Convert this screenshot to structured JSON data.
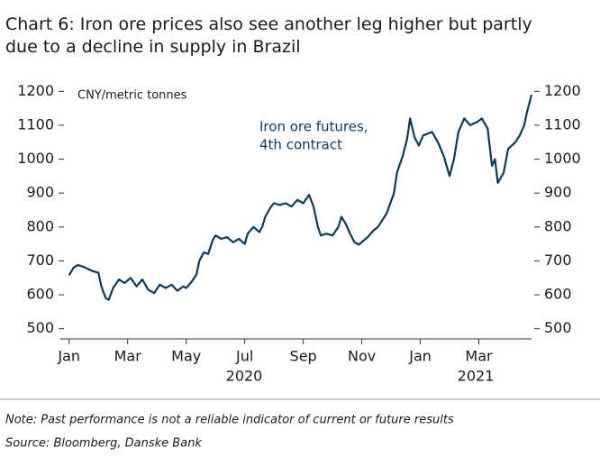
{
  "chart_data": {
    "type": "line",
    "title": "Chart 6: Iron ore prices also see another leg higher but partly due to a decline in supply in Brazil",
    "y_label": "CNY/metric tonnes",
    "annotation": [
      "Iron ore futures,",
      "4th contract"
    ],
    "note": "Note: Past performance is not a reliable indicator of current or future results",
    "source": "Source: Bloomberg, Danske Bank",
    "years": [
      "2020",
      "2021"
    ],
    "xlim": [
      -0.3,
      15.8
    ],
    "xticks": [
      {
        "value": 0,
        "label": "Jan"
      },
      {
        "value": 2,
        "label": "Mar"
      },
      {
        "value": 4,
        "label": "May"
      },
      {
        "value": 6,
        "label": "Jul"
      },
      {
        "value": 8,
        "label": "Sep"
      },
      {
        "value": 10,
        "label": "Nov"
      },
      {
        "value": 12,
        "label": "Jan"
      },
      {
        "value": 14,
        "label": "Mar"
      }
    ],
    "ylim": [
      470,
      1230
    ],
    "yticks": [
      500,
      600,
      700,
      800,
      900,
      1000,
      1100,
      1200
    ],
    "y2lim": [
      470,
      1230
    ],
    "y2ticks": [
      500,
      600,
      700,
      800,
      900,
      1000,
      1100,
      1200
    ],
    "x": [
      0,
      0.15,
      0.3,
      0.5,
      0.8,
      1.0,
      1.1,
      1.25,
      1.35,
      1.5,
      1.7,
      1.9,
      2.1,
      2.3,
      2.5,
      2.7,
      2.9,
      3.1,
      3.3,
      3.5,
      3.7,
      3.9,
      4.0,
      4.2,
      4.35,
      4.45,
      4.6,
      4.75,
      4.9,
      5.0,
      5.2,
      5.4,
      5.6,
      5.8,
      6.0,
      6.1,
      6.3,
      6.5,
      6.6,
      6.7,
      6.9,
      7.0,
      7.2,
      7.4,
      7.6,
      7.8,
      8.0,
      8.2,
      8.35,
      8.5,
      8.6,
      8.8,
      9.0,
      9.2,
      9.3,
      9.45,
      9.6,
      9.75,
      9.9,
      10.2,
      10.4,
      10.55,
      10.85,
      11.1,
      11.2,
      11.4,
      11.55,
      11.65,
      11.8,
      11.95,
      12.1,
      12.4,
      12.6,
      12.8,
      13.0,
      13.15,
      13.3,
      13.5,
      13.7,
      13.95,
      14.1,
      14.3,
      14.45,
      14.55,
      14.65,
      14.85,
      15.0,
      15.25,
      15.4,
      15.55,
      15.65,
      15.8
    ],
    "series": [
      {
        "color": "#0b3a5c",
        "values": [
          658,
          680,
          688,
          682,
          670,
          665,
          625,
          590,
          585,
          620,
          645,
          635,
          650,
          625,
          645,
          615,
          605,
          630,
          620,
          630,
          612,
          625,
          620,
          640,
          660,
          700,
          725,
          720,
          760,
          775,
          765,
          770,
          755,
          765,
          750,
          780,
          800,
          785,
          800,
          830,
          860,
          870,
          865,
          870,
          860,
          880,
          870,
          895,
          860,
          800,
          775,
          780,
          775,
          800,
          830,
          810,
          780,
          755,
          748,
          770,
          790,
          800,
          840,
          900,
          960,
          1010,
          1060,
          1120,
          1065,
          1040,
          1070,
          1080,
          1050,
          1010,
          950,
          1000,
          1080,
          1120,
          1100,
          1110,
          1120,
          1090,
          980,
          1000,
          930,
          960,
          1030,
          1050,
          1070,
          1100,
          1140,
          1190
        ]
      }
    ]
  }
}
